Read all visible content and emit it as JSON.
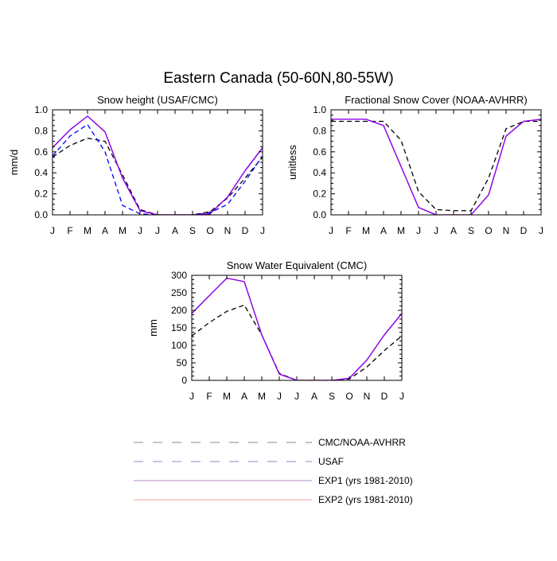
{
  "figure": {
    "title": "Eastern Canada (50-60N,80-55W)"
  },
  "colors": {
    "cmc_noaa": "#000000",
    "usaf": "#0000ff",
    "exp1": "#7f00ff",
    "exp2": "#ff0000",
    "legend_cmc": "#888888",
    "legend_usaf": "#8888c8",
    "legend_exp1": "#b58dc7",
    "legend_exp2": "#f5a0a0"
  },
  "legend": {
    "items": [
      {
        "label": "CMC/NOAA-AVHRR",
        "color_key": "legend_cmc",
        "dash": true
      },
      {
        "label": "USAF",
        "color_key": "legend_usaf",
        "dash": true
      },
      {
        "label": "EXP1 (yrs 1981-2010)",
        "color_key": "legend_exp1",
        "dash": false
      },
      {
        "label": "EXP2 (yrs 1981-2010)",
        "color_key": "legend_exp2",
        "dash": false
      }
    ]
  },
  "chart_data": [
    {
      "type": "line",
      "title": "Snow height (USAF/CMC)",
      "ylabel": "mm/d",
      "categories": [
        "J",
        "F",
        "M",
        "A",
        "M",
        "J",
        "J",
        "A",
        "S",
        "O",
        "N",
        "D",
        "J"
      ],
      "ylim": [
        0,
        1.0
      ],
      "yticks": [
        0.0,
        0.2,
        0.4,
        0.6,
        0.8,
        1.0
      ],
      "ytick_labels": [
        "0.0",
        "0.2",
        "0.4",
        "0.6",
        "0.8",
        "1.0"
      ],
      "series": [
        {
          "name": "CMC/NOAA-AVHRR",
          "dash": true,
          "color_key": "cmc_noaa",
          "values": [
            0.55,
            0.66,
            0.73,
            0.7,
            0.38,
            0.05,
            0.0,
            0.0,
            0.0,
            0.03,
            0.16,
            0.35,
            0.55
          ]
        },
        {
          "name": "USAF",
          "dash": true,
          "color_key": "usaf",
          "values": [
            0.56,
            0.75,
            0.86,
            0.6,
            0.09,
            0.01,
            0.0,
            0.0,
            0.0,
            0.02,
            0.1,
            0.32,
            0.56
          ]
        },
        {
          "name": "EXP1 (yrs 1981-2010)",
          "dash": false,
          "color_key": "exp1",
          "values": [
            0.64,
            0.81,
            0.94,
            0.79,
            0.35,
            0.04,
            0.0,
            0.0,
            0.0,
            0.01,
            0.17,
            0.42,
            0.64
          ]
        },
        {
          "name": "EXP2 (yrs 1981-2010)",
          "dash": false,
          "color_key": "exp2",
          "values": [
            0.64,
            0.81,
            0.94,
            0.79,
            0.35,
            0.04,
            0.0,
            0.0,
            0.0,
            0.01,
            0.17,
            0.42,
            0.64
          ]
        }
      ]
    },
    {
      "type": "line",
      "title": "Fractional Snow Cover (NOAA-AVHRR)",
      "ylabel": "unitless",
      "categories": [
        "J",
        "F",
        "M",
        "A",
        "M",
        "J",
        "J",
        "A",
        "S",
        "O",
        "N",
        "D",
        "J"
      ],
      "ylim": [
        0,
        1.0
      ],
      "yticks": [
        0.0,
        0.2,
        0.4,
        0.6,
        0.8,
        1.0
      ],
      "ytick_labels": [
        "0.0",
        "0.2",
        "0.4",
        "0.6",
        "0.8",
        "1.0"
      ],
      "series": [
        {
          "name": "CMC/NOAA-AVHRR",
          "dash": true,
          "color_key": "cmc_noaa",
          "values": [
            0.89,
            0.89,
            0.89,
            0.89,
            0.71,
            0.22,
            0.05,
            0.04,
            0.04,
            0.35,
            0.82,
            0.89,
            0.89
          ]
        },
        {
          "name": "EXP1 (yrs 1981-2010)",
          "dash": false,
          "color_key": "exp1",
          "values": [
            0.91,
            0.91,
            0.91,
            0.85,
            0.46,
            0.07,
            0.0,
            0.0,
            0.0,
            0.19,
            0.75,
            0.89,
            0.91
          ]
        },
        {
          "name": "EXP2 (yrs 1981-2010)",
          "dash": false,
          "color_key": "exp2",
          "values": [
            0.91,
            0.91,
            0.91,
            0.85,
            0.46,
            0.07,
            0.0,
            0.0,
            0.0,
            0.19,
            0.75,
            0.89,
            0.91
          ]
        }
      ]
    },
    {
      "type": "line",
      "title": "Snow Water Equivalent (CMC)",
      "ylabel": "mm",
      "categories": [
        "J",
        "F",
        "M",
        "A",
        "M",
        "J",
        "J",
        "A",
        "S",
        "O",
        "N",
        "D",
        "J"
      ],
      "ylim": [
        0,
        300
      ],
      "yticks": [
        0,
        50,
        100,
        150,
        200,
        250,
        300
      ],
      "ytick_labels": [
        "0",
        "50",
        "100",
        "150",
        "200",
        "250",
        "300"
      ],
      "series": [
        {
          "name": "CMC/NOAA-AVHRR",
          "dash": true,
          "color_key": "cmc_noaa",
          "values": [
            127,
            165,
            197,
            215,
            130,
            20,
            0,
            0,
            0,
            4,
            38,
            85,
            127
          ]
        },
        {
          "name": "EXP1 (yrs 1981-2010)",
          "dash": false,
          "color_key": "exp1",
          "values": [
            191,
            242,
            292,
            282,
            130,
            18,
            0,
            0,
            0,
            6,
            58,
            130,
            191
          ]
        },
        {
          "name": "EXP2 (yrs 1981-2010)",
          "dash": false,
          "color_key": "exp2",
          "values": [
            191,
            242,
            292,
            282,
            130,
            18,
            0,
            0,
            0,
            6,
            58,
            130,
            191
          ]
        }
      ]
    }
  ]
}
